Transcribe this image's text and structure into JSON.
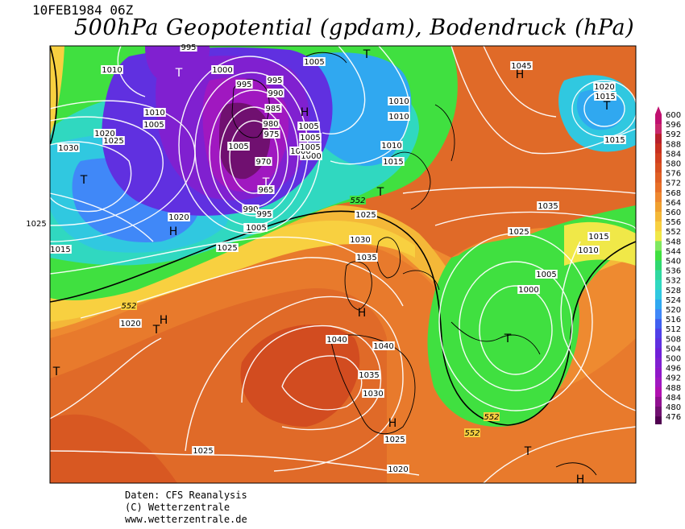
{
  "header": {
    "datetime": "10FEB1984 06Z",
    "title": "500hPa Geopotential (gpdam), Bodendruck (hPa)"
  },
  "map": {
    "isobar_labels": [
      "995",
      "1010",
      "1000",
      "995",
      "1005",
      "1010",
      "1005",
      "995",
      "990",
      "985",
      "980",
      "975",
      "970",
      "965",
      "990",
      "995",
      "1005",
      "1000",
      "1005",
      "1010",
      "1015",
      "1020",
      "1025",
      "1030",
      "1005",
      "1010",
      "1015",
      "1020",
      "1025",
      "1030",
      "1025",
      "1005",
      "1010",
      "1035",
      "1045",
      "1020",
      "1015",
      "1025",
      "1030",
      "1035",
      "1040",
      "1040",
      "1035",
      "1030",
      "1025",
      "1025",
      "1020",
      "1015",
      "1010",
      "1005",
      "1000",
      "1025",
      "1020",
      "1015",
      "1000",
      "1005"
    ],
    "contour_labels": [
      "552",
      "552",
      "552",
      "552"
    ],
    "pressure_centers": [
      {
        "type": "T"
      },
      {
        "type": "T"
      },
      {
        "type": "T"
      },
      {
        "type": "H"
      },
      {
        "type": "H"
      },
      {
        "type": "T"
      },
      {
        "type": "T"
      },
      {
        "type": "H"
      },
      {
        "type": "T"
      },
      {
        "type": "H"
      },
      {
        "type": "T"
      },
      {
        "type": "H"
      },
      {
        "type": "T"
      },
      {
        "type": "T"
      },
      {
        "type": "H"
      },
      {
        "type": "T"
      },
      {
        "type": "H"
      }
    ]
  },
  "legend": {
    "values": [
      600,
      596,
      592,
      588,
      584,
      580,
      576,
      572,
      568,
      564,
      560,
      556,
      552,
      548,
      544,
      540,
      536,
      532,
      528,
      524,
      520,
      516,
      512,
      508,
      504,
      500,
      496,
      492,
      488,
      484,
      480,
      476
    ],
    "colors": [
      "#c01070",
      "#c8286c",
      "#b8202c",
      "#c83020",
      "#d24020",
      "#d85020",
      "#e06024",
      "#e87028",
      "#ee8830",
      "#f0a030",
      "#f4b838",
      "#f8d040",
      "#f0e848",
      "#80e860",
      "#40e040",
      "#30d870",
      "#30d8a0",
      "#30d8c0",
      "#30c8e0",
      "#30a8f0",
      "#4088f8",
      "#4060f0",
      "#5040e8",
      "#6030e0",
      "#7020d8",
      "#8020d0",
      "#9018c8",
      "#a018c0",
      "#b010b0",
      "#901090",
      "#701070",
      "#500050"
    ]
  },
  "credits": {
    "line1": "Daten: CFS Reanalysis",
    "line2": "(C) Wetterzentrale",
    "line3": "www.wetterzentrale.de"
  }
}
